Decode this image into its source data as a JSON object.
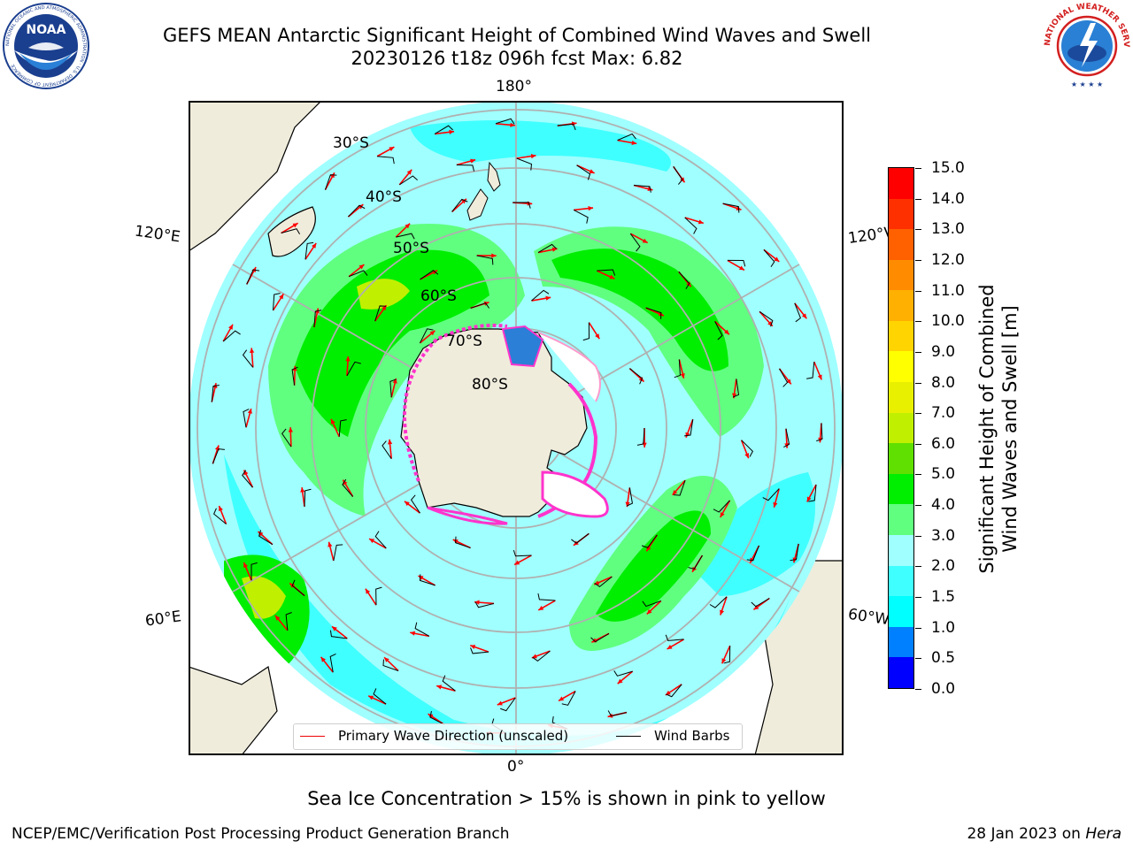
{
  "header": {
    "title_line1": "GEFS MEAN Antarctic Significant Height of Combined Wind Waves and Swell",
    "title_line2": "20230126 t18z 096h fcst   Max: 6.82"
  },
  "logos": {
    "noaa": {
      "text": "NOAA",
      "ring_text": "NATIONAL OCEANIC AND ATMOSPHERIC ADMINISTRATION · U.S. DEPARTMENT OF COMMERCE"
    },
    "nws": {
      "ring_text": "NATIONAL WEATHER SERVICE"
    }
  },
  "map": {
    "longitude_labels": {
      "top": "180°",
      "bottom": "0°",
      "upper_left": "120°E",
      "lower_left": "60°E",
      "upper_right": "120°W",
      "lower_right": "60°W"
    },
    "latitude_labels": [
      "30°S",
      "40°S",
      "50°S",
      "60°S",
      "70°S",
      "80°S"
    ],
    "legend": {
      "primary": "Primary Wave Direction (unscaled)",
      "barbs": "Wind Barbs"
    },
    "colors": {
      "land": "#efecdc",
      "ice": "#ffffff",
      "primary_arrow": "#ff0000",
      "barb": "#000000",
      "grid": "#b0b0b0"
    }
  },
  "colorbar": {
    "label_line1": "Significant Height of Combined",
    "label_line2": "Wind Waves and Swell [m]",
    "ticks": [
      "15.0",
      "14.0",
      "13.0",
      "12.0",
      "11.0",
      "10.0",
      "9.0",
      "8.0",
      "7.0",
      "6.0",
      "5.0",
      "4.0",
      "3.0",
      "2.0",
      "1.5",
      "1.0",
      "0.5",
      "0.0"
    ],
    "colors_low_to_high": [
      "#0000ff",
      "#0080ff",
      "#00ffff",
      "#40ffff",
      "#a0ffff",
      "#60ff80",
      "#00ee00",
      "#60e000",
      "#c0f000",
      "#e8f000",
      "#ffff00",
      "#ffd400",
      "#ffb000",
      "#ff8c00",
      "#ff6000",
      "#ff3000",
      "#ff0000"
    ]
  },
  "notes": {
    "ice": "Sea Ice Concentration > 15% is shown in pink to yellow",
    "footer_left": "NCEP/EMC/Verification Post Processing Product Generation Branch",
    "footer_date": "28 Jan 2023 on ",
    "footer_machine": "Hera"
  }
}
